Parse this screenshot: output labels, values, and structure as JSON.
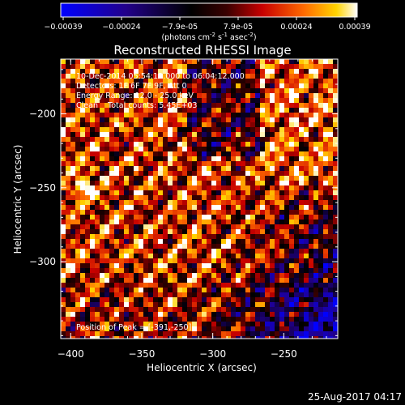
{
  "colorbar": {
    "tick_labels": [
      "-0.00039",
      "-0.00024",
      "-7.9e-05",
      "7.9e-05",
      "0.00024",
      "0.00039"
    ],
    "range": [
      -0.00039,
      0.00039
    ],
    "unit_prefix": "(photons cm",
    "unit_sup1": "-2",
    "unit_mid": " s",
    "unit_sup2": "-1",
    "unit_mid2": " asec",
    "unit_sup3": "-2",
    "unit_suffix": ")"
  },
  "chart_data": {
    "type": "heatmap",
    "title": "Reconstructed RHESSI Image",
    "xlabel": "Heliocentric X (arcsec)",
    "ylabel": "Heliocentric Y (arcsec)",
    "xlim": [
      -407,
      -212
    ],
    "ylim": [
      -352,
      -163
    ],
    "x_ticks": [
      -400,
      -350,
      -300,
      -250
    ],
    "y_ticks": [
      -200,
      -250,
      -300
    ],
    "x_tick_labels": [
      "−400",
      "−350",
      "−300",
      "−250"
    ],
    "y_tick_labels": [
      "−200",
      "−250",
      "−300"
    ],
    "colormap": "blue-black-red-yellow-white",
    "grid": false,
    "info_lines": [
      "10-Dec-2014 05:54:12.000 to 06:04:12.000",
      "Detectors: 1F 6F 7F 9F, Att 0",
      "Energy Range: 12.0 - 25.0 keV",
      "Clean    Total counts: 5.45E+03"
    ],
    "peak_label": "Position of Peak = [-391,-250]",
    "peak": [
      -391,
      -250
    ]
  },
  "timestamp": "25-Aug-2017 04:17"
}
